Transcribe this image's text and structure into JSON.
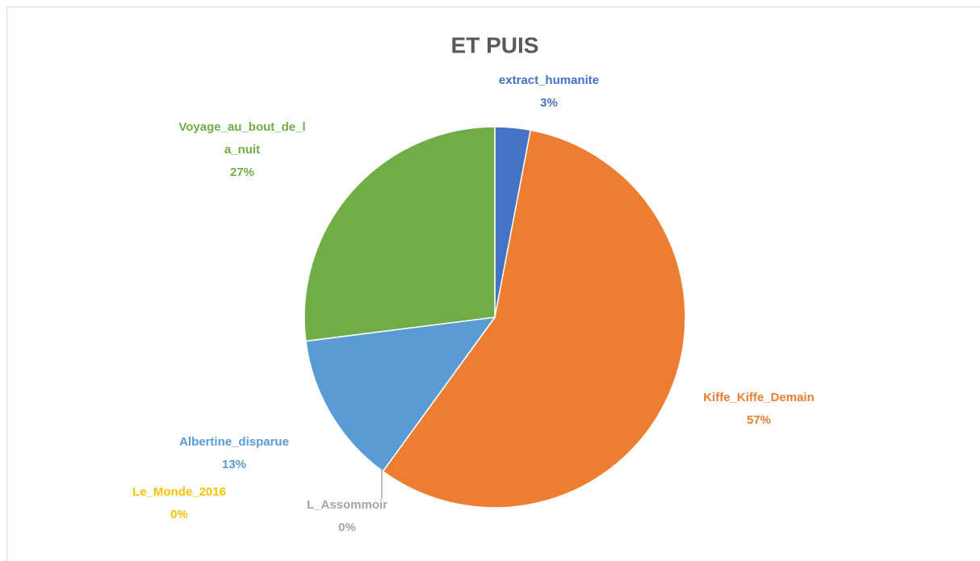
{
  "chart_data": {
    "type": "pie",
    "title": "ET PUIS",
    "categories": [
      "extract_humanite",
      "Kiffe_Kiffe_Demain",
      "L_Assommoir",
      "Le_Monde_2016",
      "Albertine_disparue",
      "Voyage_au_bout_de_la_nuit"
    ],
    "values": [
      3,
      57,
      0,
      0,
      13,
      27
    ],
    "value_labels": [
      "3%",
      "57%",
      "0%",
      "0%",
      "13%",
      "27%"
    ],
    "colors": [
      "#4472c4",
      "#ed7d31",
      "#a5a5a5",
      "#ffc000",
      "#5b9bd5",
      "#70ad47"
    ]
  }
}
